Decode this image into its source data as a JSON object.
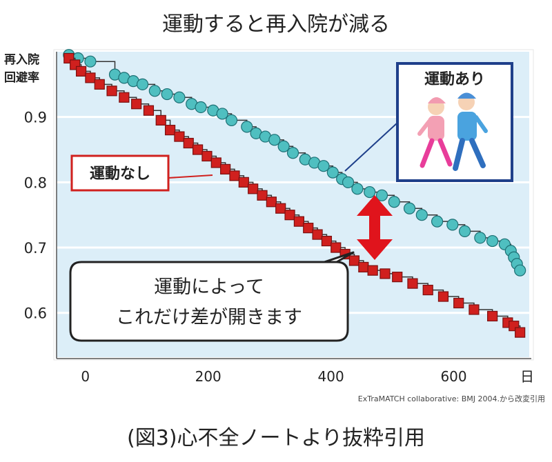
{
  "title": "運動すると再入院が減る",
  "caption": "(図3)心不全ノートより抜粋引用",
  "chart_data": {
    "type": "scatter",
    "ylabel": "再入院\n回避率",
    "xlabel": "日",
    "source": "ExTraMATCH collaborative: BMJ 2004.から改変引用",
    "xlim": [
      -20,
      750
    ],
    "ylim": [
      0.53,
      1.0
    ],
    "x_ticks": [
      0,
      200,
      400,
      600
    ],
    "y_ticks": [
      0.9,
      0.8,
      0.7,
      0.6
    ],
    "y_tick_labels": [
      "0.9",
      "0.8",
      "0.7",
      "0.6"
    ],
    "annotation": "運動によって\nこれだけ差が開きます",
    "colors": {
      "plot_background": "#dceef8",
      "gridline": "#ffffff",
      "exercise": "#4fbfc0",
      "no_exercise": "#d0201e",
      "arrow": "#e0141c",
      "exercise_box": "#1e3f8a",
      "no_exercise_box": "#d0201e"
    },
    "series": [
      {
        "name": "運動あり",
        "marker": "circle",
        "x": [
          0,
          15,
          35,
          75,
          90,
          105,
          120,
          140,
          160,
          180,
          200,
          215,
          235,
          250,
          265,
          290,
          305,
          320,
          335,
          350,
          365,
          385,
          400,
          415,
          430,
          445,
          455,
          470,
          490,
          510,
          530,
          555,
          575,
          600,
          625,
          645,
          670,
          690,
          710,
          720,
          725,
          730,
          735
        ],
        "y": [
          0.995,
          0.99,
          0.985,
          0.965,
          0.96,
          0.955,
          0.95,
          0.94,
          0.935,
          0.93,
          0.92,
          0.915,
          0.91,
          0.905,
          0.895,
          0.885,
          0.875,
          0.87,
          0.865,
          0.855,
          0.845,
          0.835,
          0.83,
          0.825,
          0.815,
          0.805,
          0.8,
          0.79,
          0.785,
          0.78,
          0.77,
          0.76,
          0.75,
          0.74,
          0.735,
          0.725,
          0.715,
          0.71,
          0.705,
          0.695,
          0.685,
          0.675,
          0.665
        ]
      },
      {
        "name": "運動なし",
        "marker": "square",
        "x": [
          0,
          10,
          20,
          35,
          50,
          70,
          90,
          110,
          130,
          150,
          165,
          180,
          195,
          210,
          225,
          240,
          255,
          270,
          285,
          300,
          315,
          330,
          345,
          360,
          375,
          390,
          405,
          420,
          435,
          450,
          465,
          480,
          495,
          515,
          535,
          560,
          585,
          610,
          635,
          660,
          690,
          715,
          725,
          735
        ],
        "y": [
          0.99,
          0.98,
          0.97,
          0.96,
          0.95,
          0.94,
          0.93,
          0.92,
          0.91,
          0.895,
          0.88,
          0.87,
          0.86,
          0.85,
          0.84,
          0.83,
          0.82,
          0.81,
          0.8,
          0.79,
          0.78,
          0.77,
          0.76,
          0.75,
          0.74,
          0.73,
          0.72,
          0.71,
          0.7,
          0.69,
          0.68,
          0.67,
          0.665,
          0.66,
          0.655,
          0.645,
          0.635,
          0.625,
          0.615,
          0.605,
          0.595,
          0.585,
          0.58,
          0.57
        ]
      }
    ]
  }
}
